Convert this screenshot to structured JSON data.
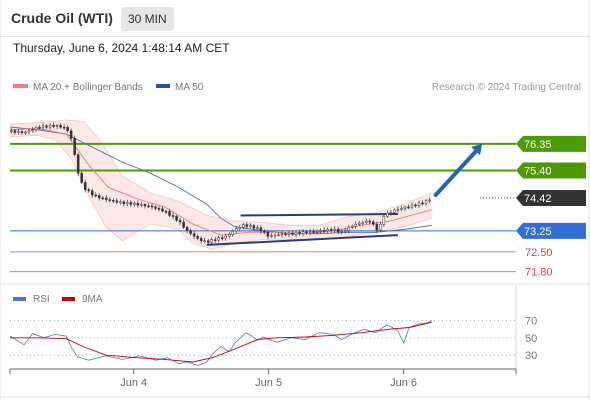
{
  "header": {
    "instrument": "Crude Oil (WTI)",
    "timeframe": "30 MIN",
    "datetime": "Thursday, June 6, 2024 1:48:14 AM CET"
  },
  "colors": {
    "resistance": "#4e9a06",
    "pivot": "#2f6fd6",
    "support": "#e04040",
    "price": "#333333",
    "ma20": "#f08080",
    "bb_fill": "#fde4e4",
    "ma50": "#4a6fb0",
    "rsi": "#4a78d8",
    "rsi_ma": "#cc0000",
    "arrow": "#2566b0",
    "channel": "#2b3c7a"
  },
  "chart_data": [
    {
      "type": "candlestick",
      "legend": {
        "ma20_label": "MA 20 + Bollinger Bands",
        "ma50_label": "MA 50"
      },
      "credit": "Research © 2024 Trading Central",
      "price_range": [
        71.5,
        77.2
      ],
      "x_range": [
        0,
        180
      ],
      "x_ticks": [
        {
          "label": "Jun 4",
          "x": 44
        },
        {
          "label": "Jun 5",
          "x": 92
        },
        {
          "label": "Jun 6",
          "x": 140
        }
      ],
      "levels": [
        {
          "value": 76.35,
          "label": "76.35",
          "role": "resistance"
        },
        {
          "value": 75.4,
          "label": "75.40",
          "role": "resistance"
        },
        {
          "value": 74.42,
          "label": "74.42",
          "role": "current"
        },
        {
          "value": 73.25,
          "label": "73.25",
          "role": "pivot"
        },
        {
          "value": 72.5,
          "label": "72.50",
          "role": "support"
        },
        {
          "value": 71.8,
          "label": "71.80",
          "role": "support"
        }
      ],
      "price_path": [
        [
          0,
          76.8
        ],
        [
          5,
          76.75
        ],
        [
          10,
          76.95
        ],
        [
          16,
          77.0
        ],
        [
          20,
          76.92
        ],
        [
          22,
          76.5
        ],
        [
          24,
          75.4
        ],
        [
          26,
          74.8
        ],
        [
          30,
          74.5
        ],
        [
          35,
          74.35
        ],
        [
          40,
          74.25
        ],
        [
          45,
          74.2
        ],
        [
          50,
          74.12
        ],
        [
          55,
          73.95
        ],
        [
          60,
          73.6
        ],
        [
          63,
          73.25
        ],
        [
          67,
          72.95
        ],
        [
          70,
          72.85
        ],
        [
          73,
          72.95
        ],
        [
          77,
          73.05
        ],
        [
          80,
          73.3
        ],
        [
          83,
          73.45
        ],
        [
          86,
          73.4
        ],
        [
          89,
          73.3
        ],
        [
          92,
          73.05
        ],
        [
          95,
          73.12
        ],
        [
          100,
          73.15
        ],
        [
          105,
          73.2
        ],
        [
          110,
          73.25
        ],
        [
          115,
          73.3
        ],
        [
          118,
          73.2
        ],
        [
          121,
          73.4
        ],
        [
          125,
          73.55
        ],
        [
          128,
          73.6
        ],
        [
          131,
          73.25
        ],
        [
          133,
          73.8
        ],
        [
          137,
          74.0
        ],
        [
          141,
          74.1
        ],
        [
          145,
          74.2
        ],
        [
          148,
          74.3
        ],
        [
          150,
          74.42
        ]
      ],
      "ma20_path": [
        [
          0,
          76.85
        ],
        [
          10,
          76.9
        ],
        [
          20,
          76.7
        ],
        [
          28,
          75.6
        ],
        [
          35,
          74.8
        ],
        [
          45,
          74.4
        ],
        [
          55,
          74.1
        ],
        [
          65,
          73.5
        ],
        [
          75,
          73.1
        ],
        [
          85,
          73.2
        ],
        [
          95,
          73.2
        ],
        [
          105,
          73.15
        ],
        [
          115,
          73.25
        ],
        [
          125,
          73.45
        ],
        [
          135,
          73.6
        ],
        [
          150,
          74.0
        ]
      ],
      "bollinger_upper": [
        [
          0,
          77.05
        ],
        [
          10,
          77.1
        ],
        [
          20,
          77.2
        ],
        [
          26,
          77.15
        ],
        [
          32,
          76.5
        ],
        [
          40,
          75.2
        ],
        [
          50,
          74.6
        ],
        [
          60,
          74.3
        ],
        [
          70,
          73.8
        ],
        [
          80,
          73.6
        ],
        [
          90,
          73.55
        ],
        [
          100,
          73.45
        ],
        [
          110,
          73.45
        ],
        [
          120,
          73.75
        ],
        [
          130,
          73.9
        ],
        [
          140,
          74.2
        ],
        [
          150,
          74.6
        ]
      ],
      "bollinger_lower": [
        [
          0,
          76.6
        ],
        [
          10,
          76.65
        ],
        [
          16,
          76.5
        ],
        [
          22,
          75.8
        ],
        [
          28,
          74.5
        ],
        [
          34,
          73.4
        ],
        [
          40,
          72.9
        ],
        [
          50,
          73.5
        ],
        [
          60,
          73.3
        ],
        [
          65,
          72.8
        ],
        [
          72,
          72.6
        ],
        [
          80,
          72.8
        ],
        [
          90,
          72.95
        ],
        [
          100,
          72.95
        ],
        [
          110,
          72.95
        ],
        [
          120,
          73.05
        ],
        [
          130,
          73.2
        ],
        [
          140,
          73.4
        ],
        [
          150,
          73.7
        ]
      ],
      "ma50_path": [
        [
          0,
          76.95
        ],
        [
          10,
          76.85
        ],
        [
          20,
          76.7
        ],
        [
          30,
          76.2
        ],
        [
          40,
          75.7
        ],
        [
          50,
          75.3
        ],
        [
          60,
          74.8
        ],
        [
          70,
          74.2
        ],
        [
          75,
          73.7
        ],
        [
          80,
          73.4
        ],
        [
          90,
          73.25
        ],
        [
          100,
          73.15
        ],
        [
          110,
          73.15
        ],
        [
          120,
          73.2
        ],
        [
          130,
          73.2
        ],
        [
          140,
          73.3
        ],
        [
          150,
          73.45
        ]
      ],
      "channel_upper": [
        [
          82,
          73.8
        ],
        [
          138,
          73.85
        ]
      ],
      "channel_lower": [
        [
          70,
          72.75
        ],
        [
          138,
          73.1
        ]
      ],
      "forecast_arrow": {
        "from": [
          150,
          74.42
        ],
        "to": [
          168,
          76.35
        ]
      }
    },
    {
      "type": "line",
      "legend": {
        "rsi_label": "RSI",
        "rsi_ma_label": "9MA"
      },
      "y_range": [
        15,
        80
      ],
      "y_ticks": [
        {
          "value": 70,
          "label": "70"
        },
        {
          "value": 50,
          "label": "50"
        },
        {
          "value": 30,
          "label": "30"
        }
      ],
      "rsi": [
        [
          0,
          52
        ],
        [
          5,
          42
        ],
        [
          8,
          55
        ],
        [
          12,
          50
        ],
        [
          16,
          54
        ],
        [
          20,
          52
        ],
        [
          22,
          38
        ],
        [
          24,
          28
        ],
        [
          28,
          24
        ],
        [
          34,
          29
        ],
        [
          40,
          25
        ],
        [
          46,
          29
        ],
        [
          52,
          24
        ],
        [
          56,
          27
        ],
        [
          60,
          20
        ],
        [
          63,
          22
        ],
        [
          67,
          18
        ],
        [
          70,
          22
        ],
        [
          72,
          31
        ],
        [
          75,
          40
        ],
        [
          78,
          34
        ],
        [
          80,
          44
        ],
        [
          82,
          50
        ],
        [
          84,
          56
        ],
        [
          86,
          52
        ],
        [
          88,
          47
        ],
        [
          90,
          51
        ],
        [
          92,
          48
        ],
        [
          95,
          45
        ],
        [
          100,
          50
        ],
        [
          105,
          48
        ],
        [
          110,
          56
        ],
        [
          115,
          54
        ],
        [
          118,
          48
        ],
        [
          122,
          55
        ],
        [
          126,
          60
        ],
        [
          130,
          56
        ],
        [
          134,
          65
        ],
        [
          136,
          62
        ],
        [
          138,
          58
        ],
        [
          140,
          44
        ],
        [
          142,
          62
        ],
        [
          145,
          66
        ],
        [
          148,
          67
        ],
        [
          150,
          70
        ]
      ],
      "rsi_ma": [
        [
          0,
          50
        ],
        [
          10,
          50
        ],
        [
          20,
          49
        ],
        [
          26,
          40
        ],
        [
          34,
          30
        ],
        [
          45,
          27
        ],
        [
          55,
          25
        ],
        [
          65,
          22
        ],
        [
          72,
          27
        ],
        [
          80,
          37
        ],
        [
          88,
          48
        ],
        [
          95,
          50
        ],
        [
          105,
          51
        ],
        [
          115,
          53
        ],
        [
          125,
          56
        ],
        [
          135,
          60
        ],
        [
          142,
          62
        ],
        [
          150,
          68
        ]
      ]
    }
  ]
}
